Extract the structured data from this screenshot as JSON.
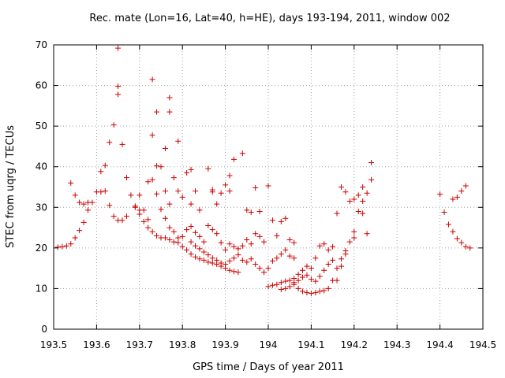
{
  "chart_data": {
    "type": "scatter",
    "title": "Rec. mate (Lon=16, Lat=40, h=HE), days 193-194, 2011, window 002",
    "xlabel": "GPS time / Days of year 2011",
    "ylabel": "STEC from uqrg / TECUs",
    "xlim": [
      193.5,
      194.5
    ],
    "ylim": [
      0,
      70
    ],
    "xticks": [
      "193.5",
      "193.6",
      "193.7",
      "193.8",
      "193.9",
      "194",
      "194.1",
      "194.2",
      "194.3",
      "194.4",
      "194.5"
    ],
    "yticks": [
      "0",
      "10",
      "20",
      "30",
      "40",
      "50",
      "60",
      "70"
    ],
    "grid": true,
    "marker": "+",
    "color": "#cc0000",
    "series": [
      {
        "points": [
          [
            193.51,
            20.2
          ],
          [
            193.52,
            20.3
          ],
          [
            193.53,
            20.5
          ],
          [
            193.54,
            21.0
          ],
          [
            193.55,
            22.5
          ],
          [
            193.56,
            24.3
          ],
          [
            193.57,
            26.3
          ],
          [
            193.58,
            29.3
          ],
          [
            193.59,
            31.2
          ],
          [
            193.61,
            33.8
          ],
          [
            193.62,
            34.0
          ],
          [
            193.63,
            30.5
          ],
          [
            193.64,
            27.8
          ],
          [
            193.65,
            26.8
          ],
          [
            193.66,
            26.8
          ],
          [
            193.67,
            27.8
          ],
          [
            193.69,
            30.0
          ],
          [
            193.7,
            28.3
          ],
          [
            193.71,
            26.5
          ],
          [
            193.72,
            25.0
          ],
          [
            193.73,
            24.0
          ],
          [
            193.74,
            23.0
          ],
          [
            193.75,
            22.5
          ],
          [
            193.76,
            22.5
          ],
          [
            193.77,
            22.0
          ],
          [
            193.78,
            21.5
          ],
          [
            193.79,
            21.3
          ],
          [
            193.8,
            20.3
          ],
          [
            193.81,
            19.5
          ],
          [
            193.82,
            18.5
          ],
          [
            193.83,
            17.8
          ],
          [
            193.84,
            17.3
          ],
          [
            193.85,
            17.0
          ],
          [
            193.86,
            16.5
          ],
          [
            193.87,
            16.3
          ],
          [
            193.88,
            16.0
          ],
          [
            193.89,
            15.5
          ],
          [
            193.9,
            15.0
          ],
          [
            193.91,
            14.5
          ],
          [
            193.92,
            14.2
          ],
          [
            193.93,
            14.0
          ]
        ]
      },
      {
        "points": [
          [
            193.54,
            36.0
          ],
          [
            193.55,
            33.0
          ],
          [
            193.56,
            31.2
          ],
          [
            193.57,
            30.8
          ],
          [
            193.58,
            31.2
          ],
          [
            193.6,
            33.8
          ],
          [
            193.61,
            38.8
          ],
          [
            193.62,
            40.3
          ],
          [
            193.63,
            46.0
          ],
          [
            193.64,
            50.3
          ],
          [
            193.65,
            57.8
          ],
          [
            193.65,
            59.8
          ],
          [
            193.65,
            69.2
          ],
          [
            193.66,
            45.5
          ],
          [
            193.67,
            37.3
          ],
          [
            193.68,
            33.0
          ],
          [
            193.69,
            30.3
          ],
          [
            193.7,
            29.3
          ],
          [
            193.72,
            36.3
          ],
          [
            193.73,
            36.8
          ],
          [
            193.73,
            47.8
          ],
          [
            193.73,
            61.5
          ],
          [
            193.74,
            53.5
          ],
          [
            193.74,
            40.2
          ],
          [
            193.75,
            40.0
          ],
          [
            193.76,
            44.5
          ],
          [
            193.76,
            34.0
          ],
          [
            193.77,
            30.8
          ],
          [
            193.77,
            53.5
          ],
          [
            193.77,
            57.0
          ],
          [
            193.78,
            37.3
          ],
          [
            193.79,
            46.3
          ],
          [
            193.79,
            34.0
          ],
          [
            193.8,
            32.5
          ],
          [
            193.81,
            38.5
          ],
          [
            193.82,
            39.3
          ],
          [
            193.82,
            30.8
          ],
          [
            193.83,
            34.0
          ],
          [
            193.84,
            29.3
          ],
          [
            193.86,
            39.5
          ],
          [
            193.87,
            34.3
          ],
          [
            193.87,
            33.8
          ],
          [
            193.88,
            30.8
          ],
          [
            193.89,
            33.5
          ],
          [
            193.9,
            35.5
          ],
          [
            193.91,
            37.8
          ],
          [
            193.91,
            34.0
          ],
          [
            193.92,
            41.8
          ],
          [
            193.94,
            43.3
          ],
          [
            193.95,
            29.3
          ],
          [
            193.96,
            28.8
          ],
          [
            193.97,
            34.8
          ],
          [
            193.98,
            29.0
          ],
          [
            194.0,
            35.3
          ],
          [
            194.01,
            26.8
          ],
          [
            194.02,
            23.0
          ],
          [
            194.03,
            26.5
          ],
          [
            194.04,
            27.3
          ],
          [
            194.05,
            22.0
          ],
          [
            194.06,
            21.3
          ]
        ]
      },
      {
        "points": [
          [
            193.7,
            33.0
          ],
          [
            193.71,
            29.3
          ],
          [
            193.72,
            27.0
          ],
          [
            193.74,
            33.3
          ],
          [
            193.75,
            29.5
          ],
          [
            193.76,
            27.3
          ],
          [
            193.77,
            25.0
          ],
          [
            193.78,
            24.0
          ],
          [
            193.79,
            22.5
          ],
          [
            193.8,
            22.8
          ],
          [
            193.81,
            24.5
          ],
          [
            193.82,
            25.3
          ],
          [
            193.83,
            23.8
          ],
          [
            193.84,
            22.8
          ],
          [
            193.85,
            21.5
          ],
          [
            193.86,
            25.5
          ],
          [
            193.87,
            24.5
          ],
          [
            193.88,
            23.5
          ],
          [
            193.89,
            21.3
          ],
          [
            193.9,
            19.5
          ],
          [
            193.91,
            21.0
          ],
          [
            193.92,
            20.3
          ],
          [
            193.93,
            19.8
          ],
          [
            193.94,
            20.5
          ],
          [
            193.95,
            22.0
          ],
          [
            193.96,
            21.0
          ],
          [
            193.97,
            23.5
          ],
          [
            193.98,
            22.8
          ],
          [
            193.99,
            21.5
          ]
        ]
      },
      {
        "points": [
          [
            193.82,
            21.5
          ],
          [
            193.83,
            20.5
          ],
          [
            193.84,
            19.8
          ],
          [
            193.85,
            19.0
          ],
          [
            193.86,
            18.3
          ],
          [
            193.87,
            17.5
          ],
          [
            193.88,
            17.0
          ],
          [
            193.89,
            16.3
          ],
          [
            193.9,
            16.0
          ],
          [
            193.91,
            16.8
          ],
          [
            193.92,
            17.5
          ],
          [
            193.93,
            18.3
          ],
          [
            193.94,
            17.0
          ],
          [
            193.95,
            16.5
          ],
          [
            193.96,
            17.3
          ],
          [
            193.97,
            16.0
          ],
          [
            193.98,
            15.0
          ],
          [
            193.99,
            14.0
          ],
          [
            194.0,
            15.0
          ],
          [
            194.01,
            16.8
          ],
          [
            194.02,
            17.5
          ],
          [
            194.03,
            18.5
          ],
          [
            194.04,
            19.5
          ],
          [
            194.05,
            18.0
          ],
          [
            194.06,
            17.5
          ]
        ]
      },
      {
        "points": [
          [
            194.0,
            10.5
          ],
          [
            194.01,
            10.8
          ],
          [
            194.02,
            11.0
          ],
          [
            194.03,
            11.5
          ],
          [
            194.04,
            11.8
          ],
          [
            194.05,
            12.0
          ],
          [
            194.06,
            12.5
          ],
          [
            194.07,
            13.5
          ],
          [
            194.08,
            14.5
          ],
          [
            194.09,
            15.5
          ],
          [
            194.1,
            15.0
          ],
          [
            194.11,
            17.5
          ],
          [
            194.12,
            20.5
          ],
          [
            194.13,
            21.0
          ],
          [
            194.14,
            19.5
          ],
          [
            194.15,
            20.3
          ],
          [
            194.16,
            28.5
          ],
          [
            194.17,
            35.0
          ],
          [
            194.18,
            33.8
          ],
          [
            194.19,
            31.5
          ],
          [
            194.2,
            32.0
          ],
          [
            194.21,
            33.0
          ],
          [
            194.22,
            35.0
          ],
          [
            194.24,
            41.0
          ]
        ]
      },
      {
        "points": [
          [
            194.03,
            9.8
          ],
          [
            194.04,
            10.0
          ],
          [
            194.05,
            10.5
          ],
          [
            194.06,
            11.0
          ],
          [
            194.07,
            10.0
          ],
          [
            194.08,
            9.3
          ],
          [
            194.09,
            9.0
          ],
          [
            194.1,
            8.8
          ],
          [
            194.11,
            9.0
          ],
          [
            194.12,
            9.3
          ],
          [
            194.13,
            9.5
          ],
          [
            194.14,
            10.0
          ],
          [
            194.15,
            12.0
          ],
          [
            194.16,
            15.0
          ],
          [
            194.17,
            17.3
          ],
          [
            194.18,
            19.3
          ],
          [
            194.19,
            21.5
          ],
          [
            194.2,
            24.0
          ],
          [
            194.21,
            29.0
          ],
          [
            194.22,
            31.5
          ],
          [
            194.23,
            33.5
          ]
        ]
      },
      {
        "points": [
          [
            194.06,
            11.5
          ],
          [
            194.07,
            12.0
          ],
          [
            194.08,
            12.8
          ],
          [
            194.09,
            13.3
          ],
          [
            194.1,
            12.3
          ],
          [
            194.11,
            11.8
          ],
          [
            194.12,
            13.0
          ],
          [
            194.13,
            14.5
          ],
          [
            194.14,
            16.0
          ],
          [
            194.15,
            17.0
          ],
          [
            194.16,
            12.0
          ],
          [
            194.17,
            15.5
          ],
          [
            194.18,
            18.5
          ],
          [
            194.2,
            22.5
          ],
          [
            194.22,
            28.5
          ],
          [
            194.23,
            23.5
          ],
          [
            194.24,
            36.8
          ]
        ]
      },
      {
        "points": [
          [
            194.4,
            33.2
          ],
          [
            194.41,
            28.8
          ],
          [
            194.42,
            25.8
          ],
          [
            194.43,
            24.0
          ],
          [
            194.44,
            22.3
          ],
          [
            194.45,
            21.3
          ],
          [
            194.46,
            20.3
          ],
          [
            194.47,
            20.0
          ],
          [
            194.43,
            32.0
          ],
          [
            194.44,
            32.5
          ],
          [
            194.45,
            34.0
          ],
          [
            194.46,
            35.3
          ]
        ]
      }
    ]
  }
}
